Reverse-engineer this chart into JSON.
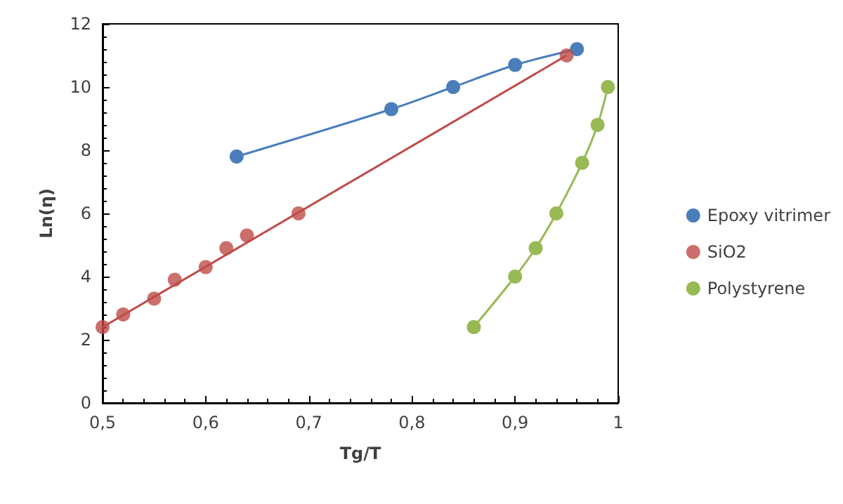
{
  "chart_data": {
    "type": "scatter",
    "xlabel": "Tg/T",
    "ylabel": "Ln(η)",
    "xlim": [
      0.5,
      1
    ],
    "ylim": [
      0,
      12
    ],
    "xticks": [
      {
        "value": 0.5,
        "label": "0,5"
      },
      {
        "value": 0.6,
        "label": "0,6"
      },
      {
        "value": 0.7,
        "label": "0,7"
      },
      {
        "value": 0.8,
        "label": "0,8"
      },
      {
        "value": 0.9,
        "label": "0,9"
      },
      1
    ],
    "yticks": [
      0,
      2,
      4,
      6,
      8,
      10,
      12
    ],
    "grid": false,
    "legend": "right",
    "marker": "circle",
    "series": [
      {
        "name": "Epoxy vitrimer",
        "type": "line",
        "color": "#4a7ebb",
        "x": [
          0.63,
          0.78,
          0.84,
          0.9,
          0.96
        ],
        "values": [
          7.8,
          9.3,
          10.0,
          10.7,
          11.2
        ]
      },
      {
        "name": "SiO2",
        "color": "#be4b48",
        "x": [
          0.5,
          0.52,
          0.55,
          0.57,
          0.6,
          0.62,
          0.64,
          0.69,
          0.95
        ],
        "values": [
          2.4,
          2.8,
          3.3,
          3.9,
          4.3,
          4.9,
          5.3,
          6.0,
          11.0
        ]
      },
      {
        "name": "Polystyrene",
        "type": "line",
        "color": "#98b954",
        "x": [
          0.86,
          0.9,
          0.92,
          0.94,
          0.965,
          0.98,
          0.99
        ],
        "values": [
          2.4,
          4.0,
          4.9,
          6.0,
          7.6,
          8.8,
          10.0
        ]
      },
      {
        "type": "line",
        "marker": "none",
        "color": "#be4b48",
        "x": [
          0.5,
          0.95
        ],
        "values": [
          2.4,
          11.0
        ]
      }
    ]
  }
}
